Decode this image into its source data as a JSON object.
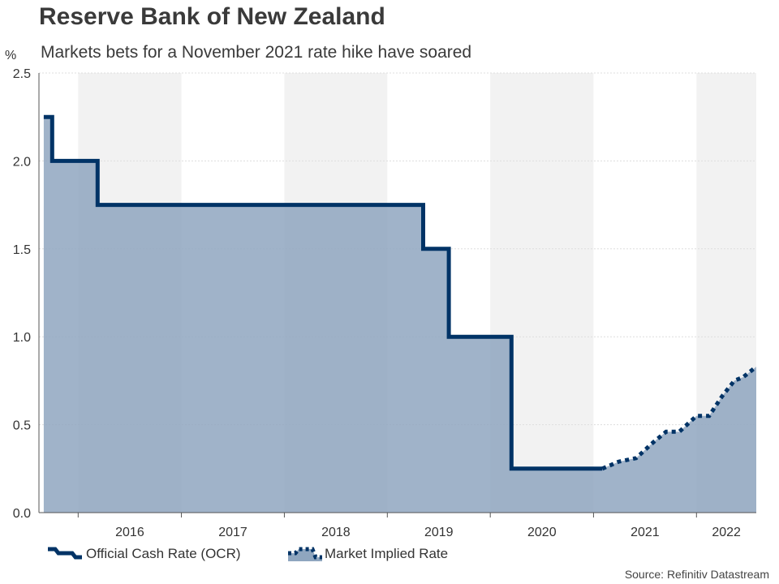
{
  "title": "Reserve Bank of New Zealand",
  "subtitle": "Markets bets for a November 2021 rate hike have soared",
  "source": "Source: Refinitiv Datastream",
  "colors": {
    "line": "#003366",
    "area": "#8fa6bf",
    "band": "#f2f2f2"
  },
  "chart_data": {
    "type": "line",
    "ylabel": "%",
    "ylim": [
      0,
      2.5
    ],
    "xlim": [
      "2015-08-15",
      "2022-08-01"
    ],
    "yticks": [
      "0.0",
      "0.5",
      "1.0",
      "1.5",
      "2.0",
      "2.5"
    ],
    "xticks": [
      "2016",
      "2017",
      "2018",
      "2019",
      "2020",
      "2021",
      "2022"
    ],
    "grid": true,
    "legend_position": "bottom-left",
    "series": [
      {
        "name": "Official Cash Rate (OCR)",
        "style": "solid",
        "x": [
          "2015-09-01",
          "2015-10-01",
          "2016-02-01",
          "2016-03-10",
          "2016-08-10",
          "2016-11-09",
          "2017-05-01",
          "2018-05-01",
          "2019-03-01",
          "2019-05-08",
          "2019-07-01",
          "2019-08-07",
          "2020-03-01",
          "2020-03-16",
          "2021-01-01",
          "2021-02-01"
        ],
        "y": [
          2.25,
          2.0,
          2.0,
          1.75,
          1.75,
          1.75,
          1.75,
          1.75,
          1.75,
          1.5,
          1.5,
          1.0,
          1.0,
          0.25,
          0.25,
          0.25
        ]
      },
      {
        "name": "Market Implied Rate",
        "style": "dotted",
        "x": [
          "2021-02-01",
          "2021-04-01",
          "2021-06-01",
          "2021-08-01",
          "2021-09-15",
          "2021-11-01",
          "2022-01-01",
          "2022-02-15",
          "2022-04-01",
          "2022-05-15",
          "2022-06-15",
          "2022-08-01"
        ],
        "y": [
          0.25,
          0.29,
          0.31,
          0.4,
          0.46,
          0.46,
          0.55,
          0.55,
          0.66,
          0.75,
          0.77,
          0.83
        ]
      }
    ]
  }
}
